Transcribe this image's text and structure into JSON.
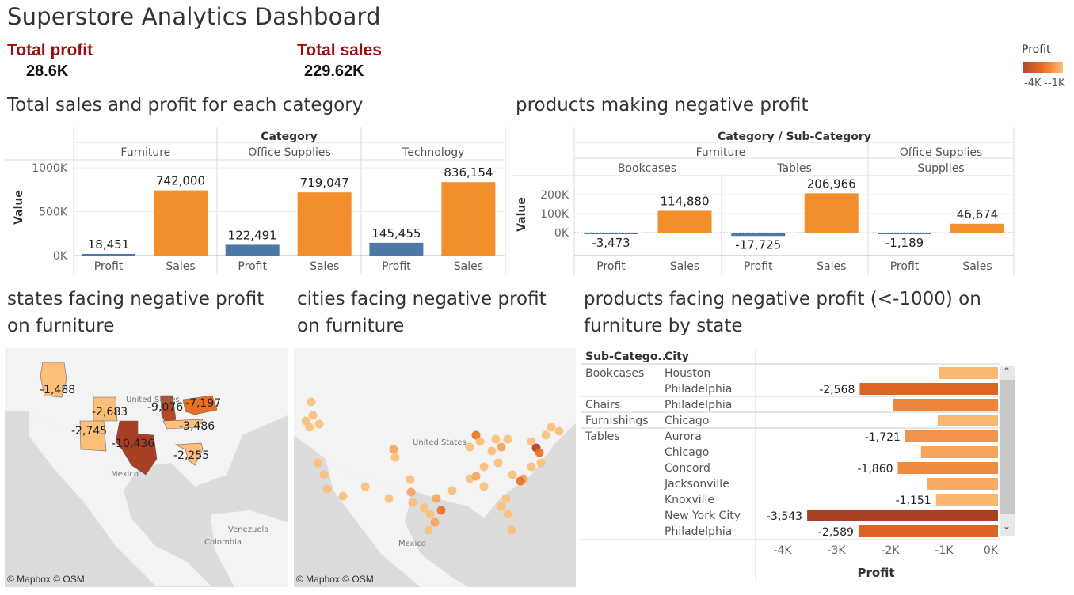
{
  "dashboard": {
    "title": "Superstore Analytics Dashboard",
    "kpis": [
      {
        "label": "Total profit",
        "value": "28.6K"
      },
      {
        "label": "Total sales",
        "value": "229.62K"
      }
    ],
    "legend": {
      "title": "Profit",
      "min_label": "-4K",
      "max_label": "-1K",
      "colors": [
        "#b3492a",
        "#e96f24",
        "#fbbf7a"
      ]
    }
  },
  "colors": {
    "profit": "#4e79a7",
    "sales": "#f28e2b",
    "dark": "#a83e24",
    "mid": "#f0882e",
    "light": "#fbbf7a"
  },
  "category_chart": {
    "title": "Total sales and profit for each category",
    "header": "Category",
    "ylabel": "Value",
    "ticks": [
      "1000K",
      "500K",
      "0K"
    ],
    "xlabels": [
      "Profit",
      "Sales"
    ]
  },
  "negative_products_chart": {
    "title": "products making negative profit",
    "header": "Category / Sub-Category",
    "ylabel": "Value",
    "ticks": [
      "200K",
      "100K",
      "0K"
    ],
    "groups": [
      "Furniture",
      "Office Supplies"
    ],
    "subgroups": [
      "Bookcases",
      "Tables",
      "Supplies"
    ],
    "xlabels": [
      "Profit",
      "Sales"
    ]
  },
  "states_map": {
    "title_line1": "states facing negative profit",
    "title_line2": "on furniture",
    "credit": "© Mapbox © OSM",
    "place_labels": [
      "United States",
      "Mexico",
      "Venezuela",
      "Colombia"
    ],
    "state_values": [
      "-1,488",
      "-2,683",
      "-9,076",
      "-7,197",
      "-2,745",
      "-3,486",
      "-10,436",
      "-2,255"
    ]
  },
  "cities_map": {
    "title_line1": "cities facing negative profit",
    "title_line2": "on furniture",
    "credit": "© Mapbox © OSM",
    "place_labels": [
      "United States",
      "Mexico"
    ]
  },
  "products_table": {
    "title_line1": "products facing negative profit (<-1000) on",
    "title_line2": "furniture by state",
    "col_headers": [
      "Sub-Catego..",
      "City"
    ],
    "axis_title": "Profit",
    "axis_ticks": [
      "-4K",
      "-3K",
      "-2K",
      "-1K",
      "0K"
    ]
  },
  "chart_data": [
    {
      "type": "bar",
      "title": "Total sales and profit for each category",
      "ylabel": "Value",
      "ylim": [
        0,
        1000000
      ],
      "facets": [
        "Furniture",
        "Office Supplies",
        "Technology"
      ],
      "categories": [
        "Profit",
        "Sales"
      ],
      "series": [
        {
          "facet": "Furniture",
          "values": [
            18451,
            742000
          ],
          "labels": [
            "18,451",
            "742,000"
          ]
        },
        {
          "facet": "Office Supplies",
          "values": [
            122491,
            719047
          ],
          "labels": [
            "122,491",
            "719,047"
          ]
        },
        {
          "facet": "Technology",
          "values": [
            145455,
            836154
          ],
          "labels": [
            "145,455",
            "836,154"
          ]
        }
      ]
    },
    {
      "type": "bar",
      "title": "products making negative profit",
      "ylabel": "Value",
      "ylim": [
        -25000,
        250000
      ],
      "facets": [
        "Bookcases",
        "Tables",
        "Supplies"
      ],
      "categories": [
        "Profit",
        "Sales"
      ],
      "series": [
        {
          "facet": "Bookcases",
          "values": [
            -3473,
            114880
          ],
          "labels": [
            "-3,473",
            "114,880"
          ]
        },
        {
          "facet": "Tables",
          "values": [
            -17725,
            206966
          ],
          "labels": [
            "-17,725",
            "206,966"
          ]
        },
        {
          "facet": "Supplies",
          "values": [
            -1189,
            46674
          ],
          "labels": [
            "-1,189",
            "46,674"
          ]
        }
      ]
    },
    {
      "type": "bar",
      "title": "products facing negative profit (<-1000) on furniture by state",
      "xlabel": "Profit",
      "xlim": [
        -4000,
        0
      ],
      "rows": [
        {
          "sub": "Bookcases",
          "city": "Houston",
          "value": -1100,
          "label": ""
        },
        {
          "sub": "",
          "city": "Philadelphia",
          "value": -2568,
          "label": "-2,568"
        },
        {
          "sub": "Chairs",
          "city": "Philadelphia",
          "value": -1950,
          "label": ""
        },
        {
          "sub": "Furnishings",
          "city": "Chicago",
          "value": -1120,
          "label": ""
        },
        {
          "sub": "Tables",
          "city": "Aurora",
          "value": -1721,
          "label": "-1,721"
        },
        {
          "sub": "",
          "city": "Chicago",
          "value": -1430,
          "label": ""
        },
        {
          "sub": "",
          "city": "Concord",
          "value": -1860,
          "label": "-1,860"
        },
        {
          "sub": "",
          "city": "Jacksonville",
          "value": -1320,
          "label": ""
        },
        {
          "sub": "",
          "city": "Knoxville",
          "value": -1151,
          "label": "-1,151"
        },
        {
          "sub": "",
          "city": "New York City",
          "value": -3543,
          "label": "-3,543"
        },
        {
          "sub": "",
          "city": "Philadelphia",
          "value": -2589,
          "label": "-2,589"
        }
      ]
    }
  ]
}
